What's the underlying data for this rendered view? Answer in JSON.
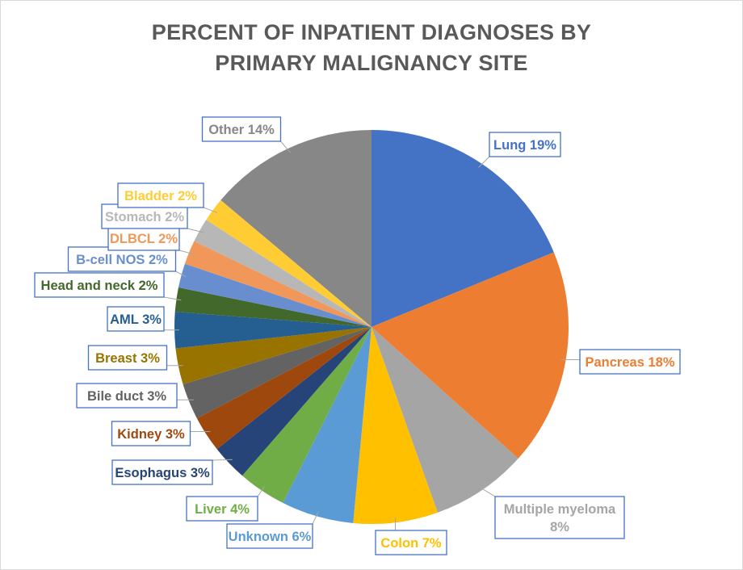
{
  "chart_data": {
    "type": "pie",
    "title_lines": [
      "PERCENT OF INPATIENT DIAGNOSES BY",
      "PRIMARY MALIGNANCY SITE"
    ],
    "slices": [
      {
        "label": "Lung",
        "value": 19,
        "text": "Lung 19%",
        "color": "#4472C4"
      },
      {
        "label": "Pancreas",
        "value": 18,
        "text": "Pancreas 18%",
        "color": "#ED7D31"
      },
      {
        "label": "Multiple myeloma",
        "value": 8,
        "text": "Multiple myeloma 8%",
        "color": "#A5A5A5"
      },
      {
        "label": "Colon",
        "value": 7,
        "text": "Colon 7%",
        "color": "#FFC000"
      },
      {
        "label": "Unknown",
        "value": 6,
        "text": "Unknown 6%",
        "color": "#5B9BD5"
      },
      {
        "label": "Liver",
        "value": 4,
        "text": "Liver 4%",
        "color": "#70AD47"
      },
      {
        "label": "Esophagus",
        "value": 3,
        "text": "Esophagus 3%",
        "color": "#264478"
      },
      {
        "label": "Kidney",
        "value": 3,
        "text": "Kidney 3%",
        "color": "#9E480E"
      },
      {
        "label": "Bile duct",
        "value": 3,
        "text": "Bile duct 3%",
        "color": "#636363"
      },
      {
        "label": "Breast",
        "value": 3,
        "text": "Breast 3%",
        "color": "#997300"
      },
      {
        "label": "AML",
        "value": 3,
        "text": "AML 3%",
        "color": "#255E91"
      },
      {
        "label": "Head and neck",
        "value": 2,
        "text": "Head and neck 2%",
        "color": "#43682B"
      },
      {
        "label": "B-cell NOS",
        "value": 2,
        "text": "B-cell NOS 2%",
        "color": "#698ED0"
      },
      {
        "label": "DLBCL",
        "value": 2,
        "text": "DLBCL 2%",
        "color": "#F1975A"
      },
      {
        "label": "Stomach",
        "value": 2,
        "text": "Stomach 2%",
        "color": "#B7B7B7"
      },
      {
        "label": "Bladder",
        "value": 2,
        "text": "Bladder 2%",
        "color": "#FFCD33"
      },
      {
        "label": "Other",
        "value": 14,
        "text": "Other 14%",
        "color": "#878787"
      }
    ]
  }
}
